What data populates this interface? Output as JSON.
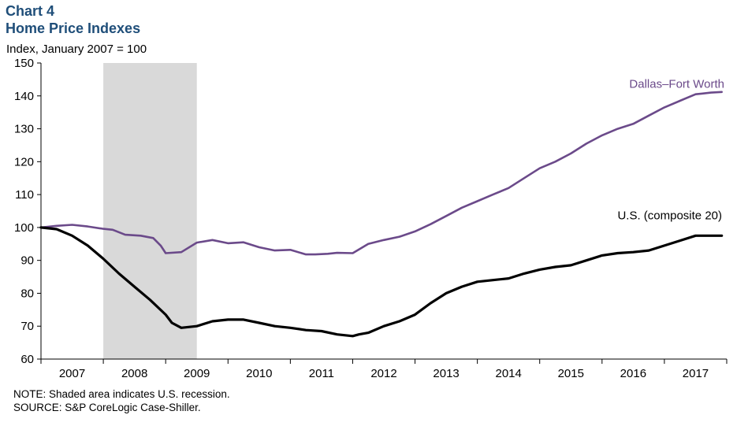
{
  "header": {
    "chart_number": "Chart 4",
    "title": "Home Price Indexes",
    "ylabel": "Index, January 2007 = 100"
  },
  "notes": {
    "note": "NOTE: Shaded area indicates U.S. recession.",
    "source": "SOURCE: S&P CoreLogic Case-Shiller."
  },
  "colors": {
    "dfw": "#6b4a8a",
    "us": "#000000",
    "recession": "#d9d9d9",
    "title": "#1f4e79"
  },
  "chart_data": {
    "type": "line",
    "ylim": [
      60,
      150
    ],
    "yticks": [
      60,
      70,
      80,
      90,
      100,
      110,
      120,
      130,
      140,
      150
    ],
    "xlim": [
      2007.0,
      2018.0
    ],
    "xtick_labels": [
      "2007",
      "2008",
      "2009",
      "2010",
      "2011",
      "2012",
      "2013",
      "2014",
      "2015",
      "2016",
      "2017"
    ],
    "grid": false,
    "recession": [
      2008.0,
      2009.5
    ],
    "series": [
      {
        "name": "Dallas–Fort Worth",
        "color": "#6b4a8a",
        "x": [
          2007.0,
          2007.25,
          2007.5,
          2007.75,
          2008.0,
          2008.15,
          2008.35,
          2008.6,
          2008.8,
          2008.92,
          2009.0,
          2009.25,
          2009.5,
          2009.75,
          2010.0,
          2010.25,
          2010.5,
          2010.75,
          2011.0,
          2011.25,
          2011.4,
          2011.6,
          2011.75,
          2012.0,
          2012.25,
          2012.5,
          2012.75,
          2013.0,
          2013.25,
          2013.5,
          2013.75,
          2014.0,
          2014.25,
          2014.5,
          2014.75,
          2015.0,
          2015.25,
          2015.5,
          2015.75,
          2016.0,
          2016.25,
          2016.5,
          2016.75,
          2017.0,
          2017.25,
          2017.5,
          2017.75,
          2017.92
        ],
        "y": [
          100,
          100.5,
          100.8,
          100.3,
          99.6,
          99.3,
          97.8,
          97.5,
          96.8,
          94.5,
          92.2,
          92.5,
          95.4,
          96.2,
          95.2,
          95.5,
          94.0,
          93.0,
          93.2,
          91.8,
          91.8,
          92.0,
          92.3,
          92.2,
          95.0,
          96.2,
          97.2,
          98.8,
          101.0,
          103.5,
          106.0,
          108.0,
          110.0,
          112.0,
          115.0,
          118.0,
          120.0,
          122.5,
          125.5,
          128.0,
          130.0,
          131.5,
          134.0,
          136.5,
          138.5,
          140.5,
          141.0,
          141.2
        ]
      },
      {
        "name": "U.S. (composite 20)",
        "color": "#000000",
        "x": [
          2007.0,
          2007.25,
          2007.5,
          2007.75,
          2008.0,
          2008.25,
          2008.5,
          2008.75,
          2009.0,
          2009.1,
          2009.25,
          2009.5,
          2009.75,
          2010.0,
          2010.25,
          2010.5,
          2010.75,
          2011.0,
          2011.25,
          2011.5,
          2011.75,
          2012.0,
          2012.1,
          2012.25,
          2012.5,
          2012.75,
          2013.0,
          2013.25,
          2013.5,
          2013.75,
          2014.0,
          2014.25,
          2014.5,
          2014.75,
          2015.0,
          2015.25,
          2015.5,
          2015.75,
          2016.0,
          2016.25,
          2016.5,
          2016.75,
          2017.0,
          2017.25,
          2017.5,
          2017.75,
          2017.92
        ],
        "y": [
          100,
          99.5,
          97.5,
          94.5,
          90.5,
          86.0,
          82.0,
          78.0,
          73.5,
          71.0,
          69.5,
          70.0,
          71.5,
          72.0,
          72.0,
          71.0,
          70.0,
          69.5,
          68.8,
          68.5,
          67.5,
          67.0,
          67.5,
          68.0,
          70.0,
          71.5,
          73.5,
          77.0,
          80.0,
          82.0,
          83.5,
          84.0,
          84.5,
          86.0,
          87.2,
          88.0,
          88.5,
          90.0,
          91.5,
          92.2,
          92.5,
          93.0,
          94.5,
          96.0,
          97.5,
          97.5,
          97.5
        ]
      }
    ],
    "annotations": [
      "Dallas–Fort Worth",
      "U.S. (composite 20)"
    ]
  }
}
